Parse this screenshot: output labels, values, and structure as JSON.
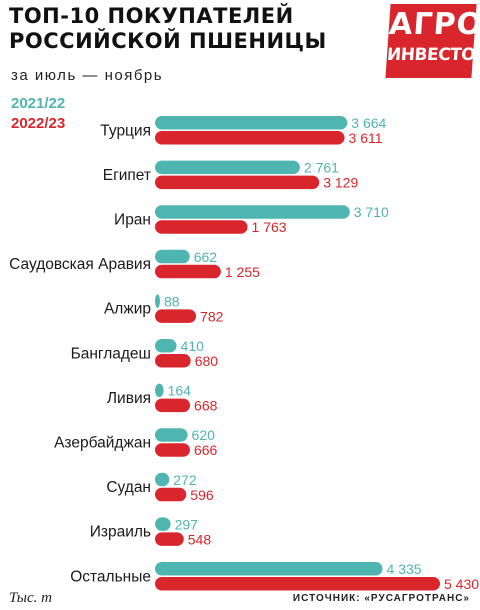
{
  "header": {
    "title_line1": "ТОП-10 ПОКУПАТЕЛЕЙ",
    "title_line2": "РОССИЙСКОЙ ПШЕНИЦЫ",
    "subtitle": "за июль — ноябрь"
  },
  "logo": {
    "line1": "АГРО",
    "line2": "ИНВЕСТОР"
  },
  "footer": {
    "unit": "Тыс. т",
    "source": "ИСТОЧНИК: «РУСАГРОТРАНС»"
  },
  "chart_data": {
    "type": "bar",
    "orientation": "horizontal",
    "categories": [
      "Турция",
      "Египет",
      "Иран",
      "Саудовская Аравия",
      "Алжир",
      "Бангладеш",
      "Ливия",
      "Азербайджан",
      "Судан",
      "Израиль",
      "Остальные"
    ],
    "series": [
      {
        "name": "2021/22",
        "color": "#4fb5b1",
        "values": [
          3664,
          2761,
          3710,
          662,
          88,
          410,
          164,
          620,
          272,
          297,
          4335
        ],
        "labels": [
          "3 664",
          "2 761",
          "3 710",
          "662",
          "88",
          "410",
          "164",
          "620",
          "272",
          "297",
          "4 335"
        ]
      },
      {
        "name": "2022/23",
        "color": "#d9262c",
        "values": [
          3611,
          3129,
          1763,
          1255,
          782,
          680,
          668,
          666,
          596,
          548,
          5430
        ],
        "labels": [
          "3 611",
          "3 129",
          "1 763",
          "1 255",
          "782",
          "680",
          "668",
          "666",
          "596",
          "548",
          "5 430"
        ]
      }
    ],
    "unit": "Тыс. т",
    "xlim": [
      0,
      5430
    ],
    "legend_position": "top-left",
    "grid": false
  }
}
